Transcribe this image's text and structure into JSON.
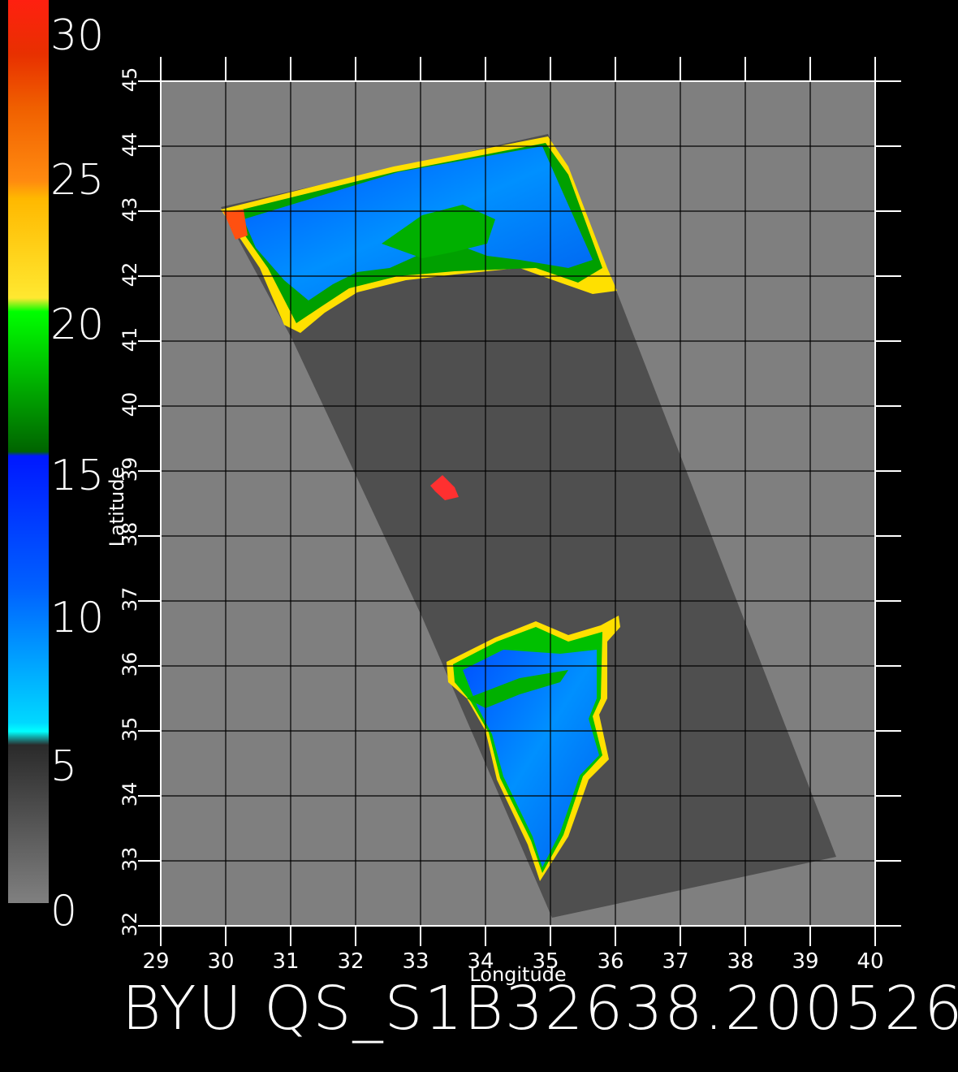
{
  "map": {
    "x_axis": {
      "label": "Longitude",
      "ticks": [
        "29",
        "30",
        "31",
        "32",
        "33",
        "34",
        "35",
        "36",
        "37",
        "38",
        "39",
        "40"
      ],
      "range": [
        29,
        40
      ]
    },
    "y_axis": {
      "label": "Latitude",
      "ticks": [
        "32",
        "33",
        "34",
        "35",
        "36",
        "37",
        "38",
        "39",
        "40",
        "41",
        "42",
        "43",
        "44",
        "45"
      ],
      "range": [
        32,
        45
      ]
    },
    "grid": true,
    "background_color": "#7f7f7f",
    "swath_color": "#4f4f4f"
  },
  "colorbar": {
    "labels": [
      "30",
      "25",
      "20",
      "15",
      "10",
      "5",
      "0"
    ],
    "range": [
      0,
      30
    ],
    "colors": [
      "#ff2a1a",
      "#e84000",
      "#ff8010",
      "#ffc800",
      "#ffff33",
      "#00ff00",
      "#008000",
      "#0000ff",
      "#0080ff",
      "#00ffff",
      "#3a3a3a",
      "#7f7f7f"
    ]
  },
  "footer": {
    "text": "BYU QS_S1B32638.200526"
  }
}
